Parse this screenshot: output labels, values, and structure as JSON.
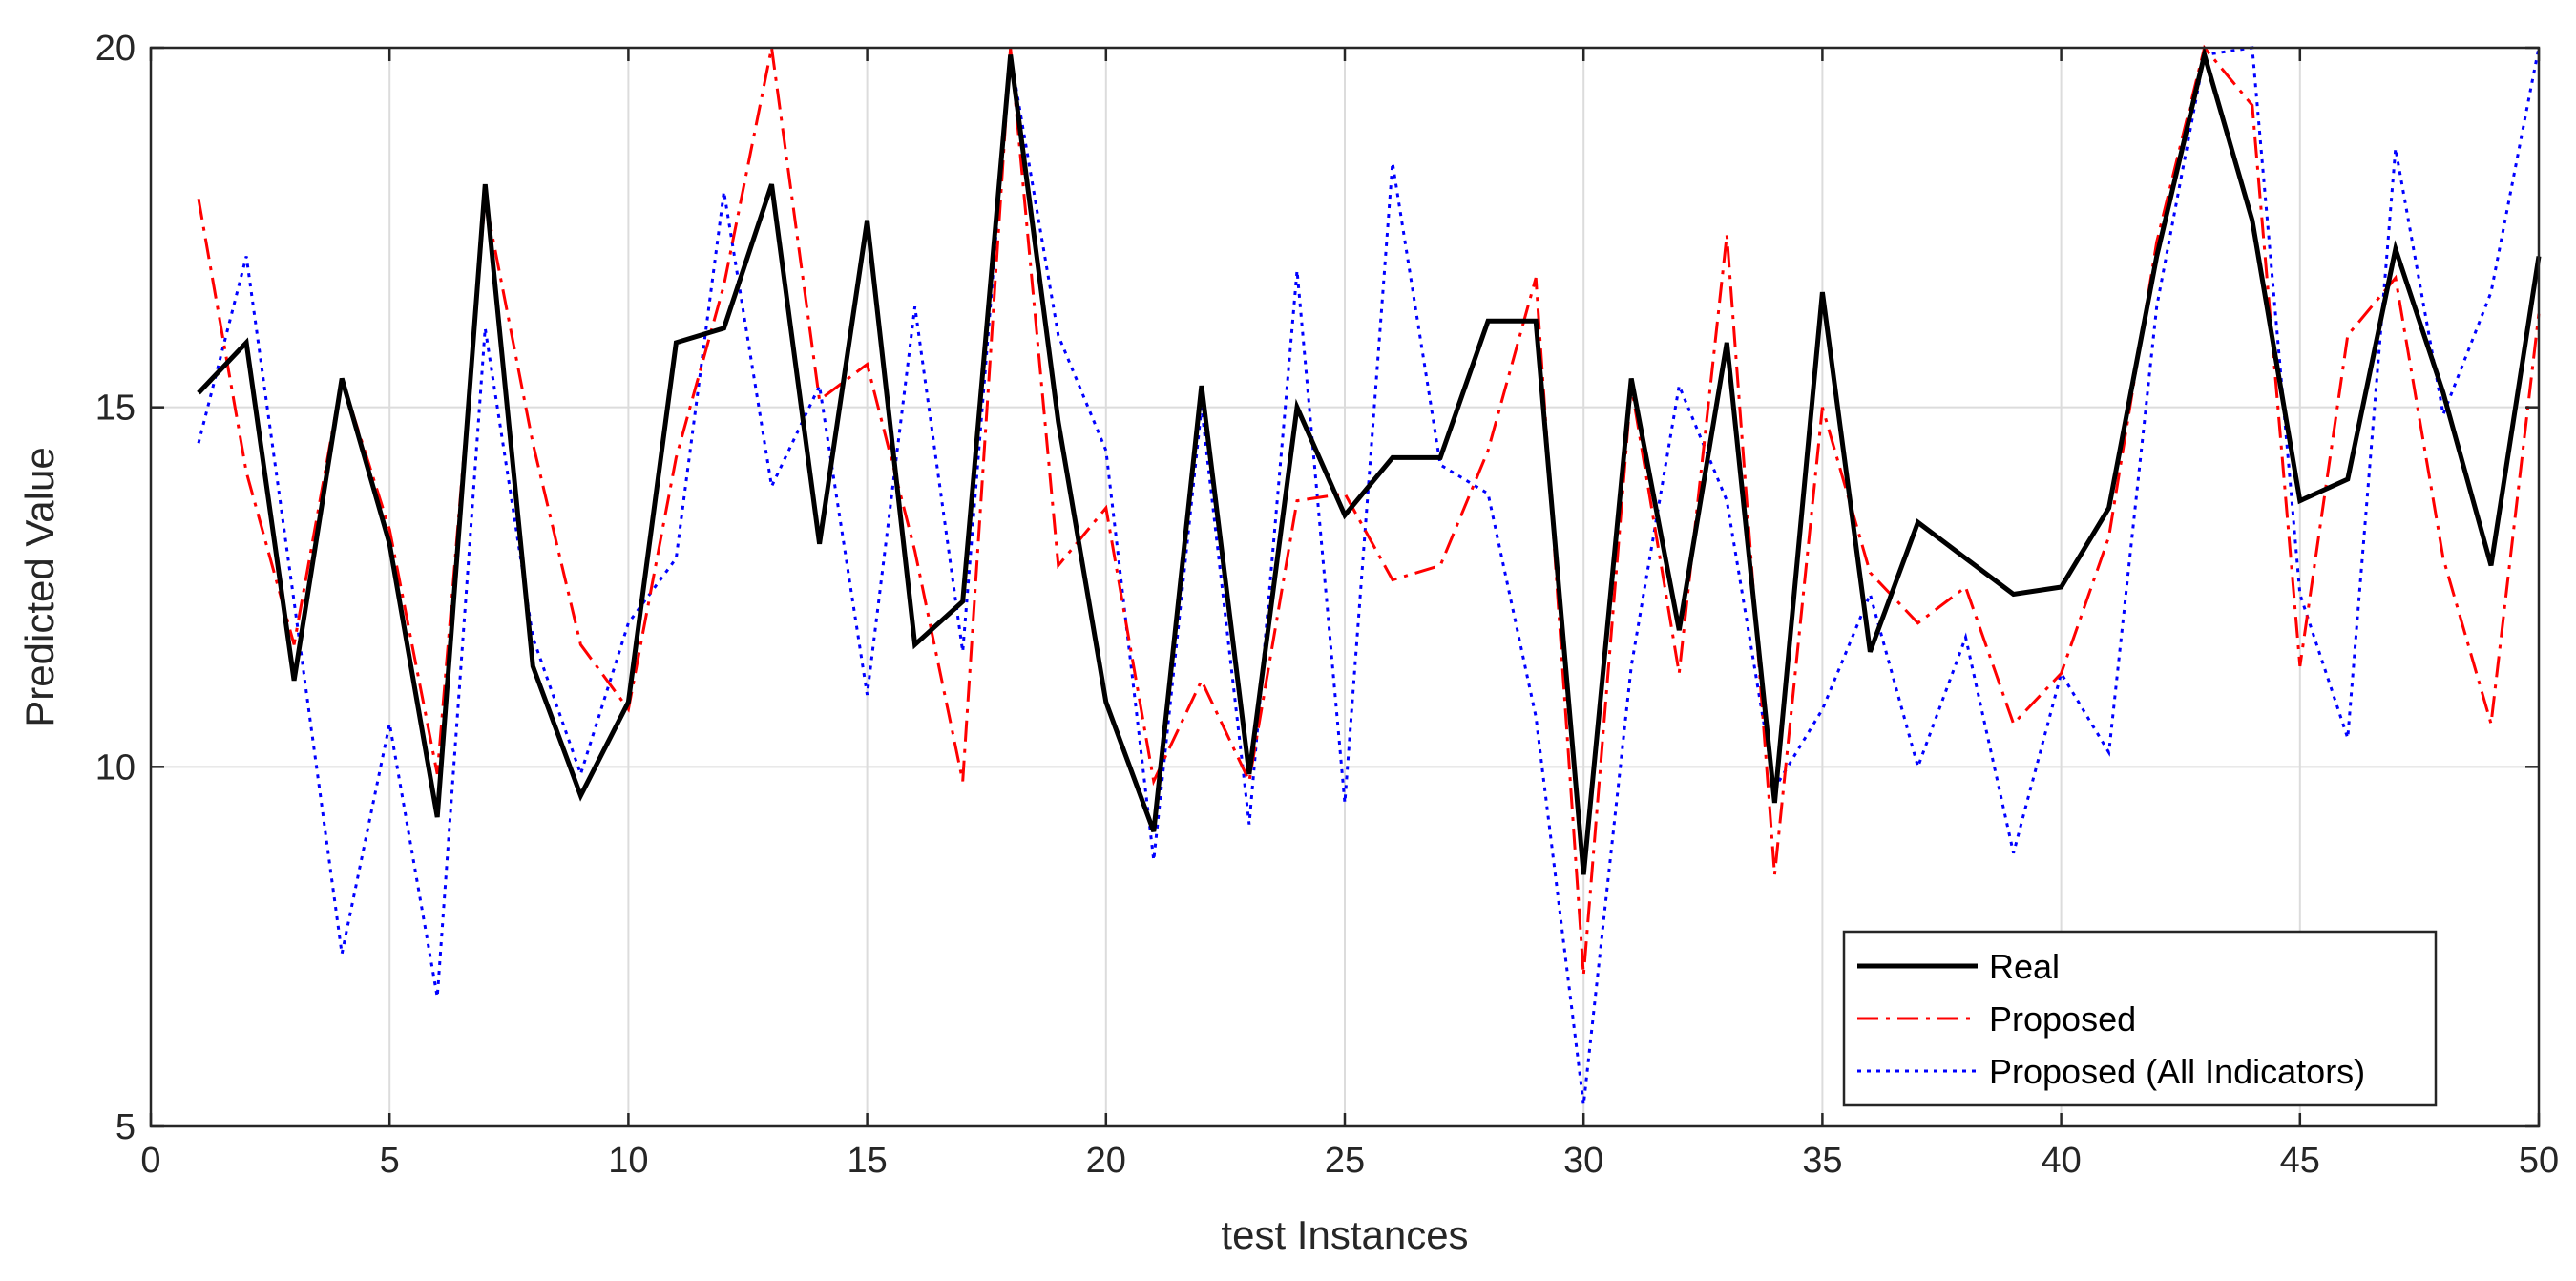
{
  "chart_data": {
    "type": "line",
    "title": "",
    "xlabel": "test Instances",
    "ylabel": "Predicted Value",
    "xlim": [
      0,
      50
    ],
    "ylim": [
      5,
      20
    ],
    "xticks": [
      0,
      5,
      10,
      15,
      20,
      25,
      30,
      35,
      40,
      45,
      50
    ],
    "yticks": [
      5,
      10,
      15,
      20
    ],
    "grid": true,
    "legend_position": "bottom-right",
    "x": [
      1,
      2,
      3,
      4,
      5,
      6,
      7,
      8,
      9,
      10,
      11,
      12,
      13,
      14,
      15,
      16,
      17,
      18,
      19,
      20,
      21,
      22,
      23,
      24,
      25,
      26,
      27,
      28,
      29,
      30,
      31,
      32,
      33,
      34,
      35,
      36,
      37,
      38,
      39,
      40,
      41,
      42,
      43,
      44,
      45,
      46,
      47,
      48,
      49,
      50
    ],
    "series": [
      {
        "name": "Real",
        "color": "#000000",
        "style": "solid",
        "values": [
          15.2,
          15.9,
          11.2,
          15.4,
          13.1,
          9.3,
          18.1,
          11.4,
          9.6,
          10.9,
          15.9,
          16.1,
          18.1,
          13.1,
          17.6,
          11.7,
          12.3,
          19.9,
          14.8,
          10.9,
          9.1,
          15.3,
          9.9,
          15.0,
          13.5,
          14.3,
          14.3,
          16.2,
          16.2,
          8.5,
          15.4,
          11.9,
          15.9,
          9.5,
          16.6,
          11.6,
          13.4,
          12.9,
          12.4,
          12.5,
          13.6,
          17.1,
          19.9,
          17.6,
          13.7,
          14.0,
          17.2,
          15.2,
          12.8,
          17.1
        ]
      },
      {
        "name": "Proposed",
        "color": "#ff0000",
        "style": "dashdot",
        "values": [
          17.9,
          14.1,
          11.7,
          15.4,
          13.3,
          9.9,
          17.9,
          14.5,
          11.7,
          10.8,
          14.3,
          16.7,
          20.0,
          15.1,
          15.6,
          13.0,
          9.8,
          20.0,
          12.8,
          13.6,
          9.8,
          11.2,
          9.8,
          13.7,
          13.8,
          12.6,
          12.8,
          14.4,
          16.8,
          7.1,
          15.3,
          11.3,
          17.4,
          8.5,
          15.0,
          12.7,
          12.0,
          12.5,
          10.6,
          11.3,
          13.2,
          17.3,
          20.0,
          19.2,
          11.4,
          16.0,
          16.8,
          12.9,
          10.6,
          16.3
        ]
      },
      {
        "name": "Proposed (All Indicators)",
        "color": "#0000ff",
        "style": "dotted",
        "values": [
          14.5,
          17.1,
          12.3,
          7.4,
          10.6,
          6.8,
          16.1,
          11.8,
          9.9,
          12.0,
          12.9,
          18.0,
          13.9,
          15.3,
          11.0,
          16.4,
          11.6,
          19.9,
          16.0,
          14.4,
          8.7,
          15.0,
          9.2,
          16.9,
          9.5,
          18.4,
          14.2,
          13.8,
          10.7,
          5.3,
          11.4,
          15.3,
          13.7,
          9.7,
          10.8,
          12.4,
          10.0,
          11.8,
          8.8,
          11.3,
          10.2,
          16.4,
          19.9,
          20.0,
          12.4,
          10.4,
          18.6,
          14.9,
          16.6,
          20.0
        ]
      }
    ]
  }
}
